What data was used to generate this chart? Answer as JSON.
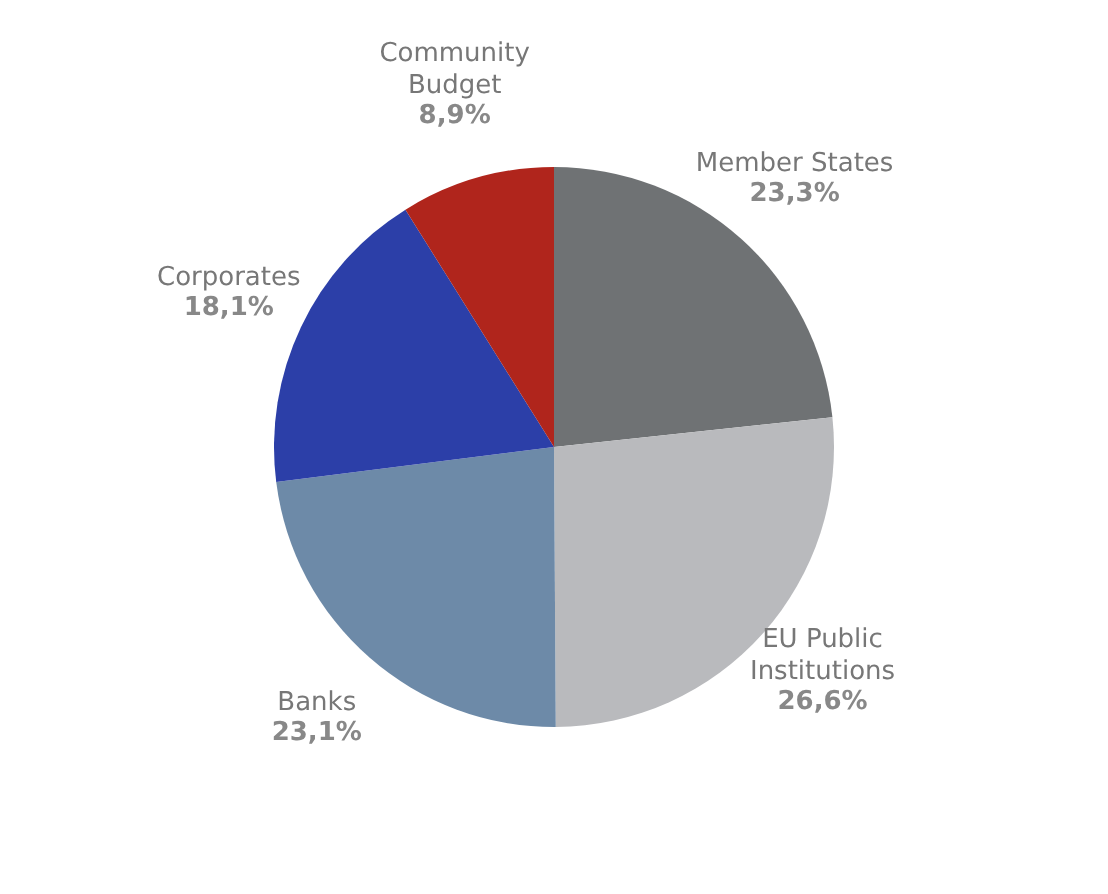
{
  "chart_data": {
    "type": "pie",
    "categories": [
      "Member States",
      "EU Public\nInstitutions",
      "Banks",
      "Corporates",
      "Community\nBudget"
    ],
    "values": [
      23.3,
      26.6,
      23.1,
      18.1,
      8.9
    ],
    "value_labels": [
      "23,3%",
      "26,6%",
      "23,1%",
      "18,1%",
      "8,9%"
    ],
    "colors": [
      "#6f7274",
      "#b9babd",
      "#6d8aa8",
      "#2c3fa8",
      "#b0251c"
    ],
    "legend": false
  }
}
